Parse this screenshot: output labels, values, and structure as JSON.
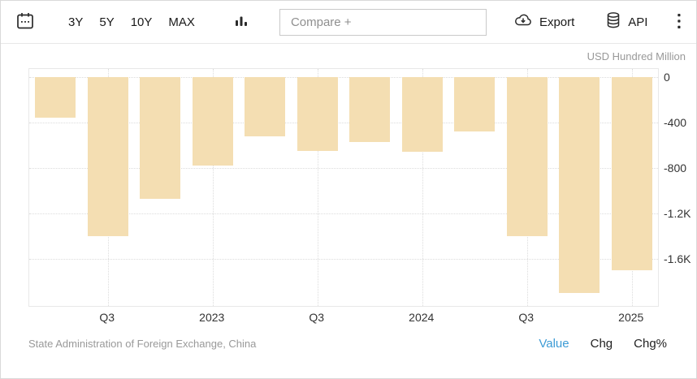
{
  "toolbar": {
    "calendar_icon": "calendar-icon",
    "ranges": [
      "3Y",
      "5Y",
      "10Y",
      "MAX"
    ],
    "charttype_icon": "bar-chart-icon",
    "compare": {
      "placeholder": "Compare +"
    },
    "export_label": "Export",
    "api_label": "API",
    "menu_icon": "kebab-menu-icon"
  },
  "colors": {
    "bar": "#f4deb2",
    "active_tab": "#3c9bd5",
    "grid": "#dcdcdc",
    "axis_text": "#333333",
    "muted_text": "#999999"
  },
  "chart_data": {
    "type": "bar",
    "title": "",
    "unit": "USD Hundred Million",
    "categories": [
      "2022-Q2",
      "2022-Q3",
      "2022-Q4",
      "2023-Q1",
      "2023-Q2",
      "2023-Q3",
      "2023-Q4",
      "2024-Q1",
      "2024-Q2",
      "2024-Q3",
      "2024-Q4",
      "2025-Q1"
    ],
    "values": [
      -360,
      -1400,
      -1070,
      -780,
      -520,
      -650,
      -570,
      -660,
      -480,
      -1400,
      -1900,
      -1700
    ],
    "xticks": [
      {
        "index": 1,
        "label": "Q3"
      },
      {
        "index": 3,
        "label": "2023"
      },
      {
        "index": 5,
        "label": "Q3"
      },
      {
        "index": 7,
        "label": "2024"
      },
      {
        "index": 9,
        "label": "Q3"
      },
      {
        "index": 11,
        "label": "2025"
      }
    ],
    "yticks": [
      {
        "value": 0,
        "label": "0"
      },
      {
        "value": -400,
        "label": "-400"
      },
      {
        "value": -800,
        "label": "-800"
      },
      {
        "value": -1200,
        "label": "-1.2K"
      },
      {
        "value": -1600,
        "label": "-1.6K"
      }
    ],
    "ylim": [
      -2010,
      80
    ],
    "grid": "dotted",
    "bar_color": "#f4deb2",
    "legend": []
  },
  "footer": {
    "source": "State Administration of Foreign Exchange, China",
    "tabs": [
      {
        "label": "Value",
        "active": true
      },
      {
        "label": "Chg",
        "active": false
      },
      {
        "label": "Chg%",
        "active": false
      }
    ]
  }
}
